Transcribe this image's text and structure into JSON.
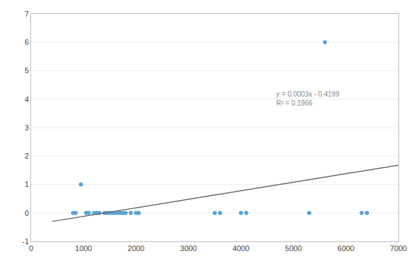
{
  "chart_data": {
    "type": "scatter",
    "series": [
      {
        "type": "scatter",
        "marker": "circle",
        "color": "#5BA3D0",
        "x": [
          800,
          850,
          950,
          1050,
          1100,
          1200,
          1250,
          1300,
          1400,
          1450,
          1500,
          1550,
          1600,
          1650,
          1700,
          1750,
          1800,
          1900,
          2000,
          2050,
          3500,
          3600,
          4000,
          4100,
          5300,
          5600,
          6300,
          6400
        ],
        "values": [
          0,
          0,
          1,
          0,
          0,
          0,
          0,
          0,
          0,
          0,
          0,
          0,
          0,
          0,
          0,
          0,
          0,
          0,
          0,
          0,
          0,
          0,
          0,
          0,
          0,
          6,
          0,
          0
        ]
      },
      {
        "type": "line",
        "line_style": "solid",
        "color": "#666666",
        "x": [
          400,
          7000
        ],
        "values": [
          -0.2999,
          1.6801
        ]
      }
    ],
    "annotations": [
      {
        "text": "y = 0.0003x - 0.4199\nR² = 0.1966",
        "x": 4650,
        "y": 4.35
      }
    ],
    "xlim": [
      0,
      7000
    ],
    "ylim": [
      -1,
      7
    ],
    "xticks": [
      0,
      1000,
      2000,
      3000,
      4000,
      5000,
      6000,
      7000
    ],
    "yticks": [
      -1,
      0,
      1,
      2,
      3,
      4,
      5,
      6,
      7
    ],
    "grid": "y"
  }
}
